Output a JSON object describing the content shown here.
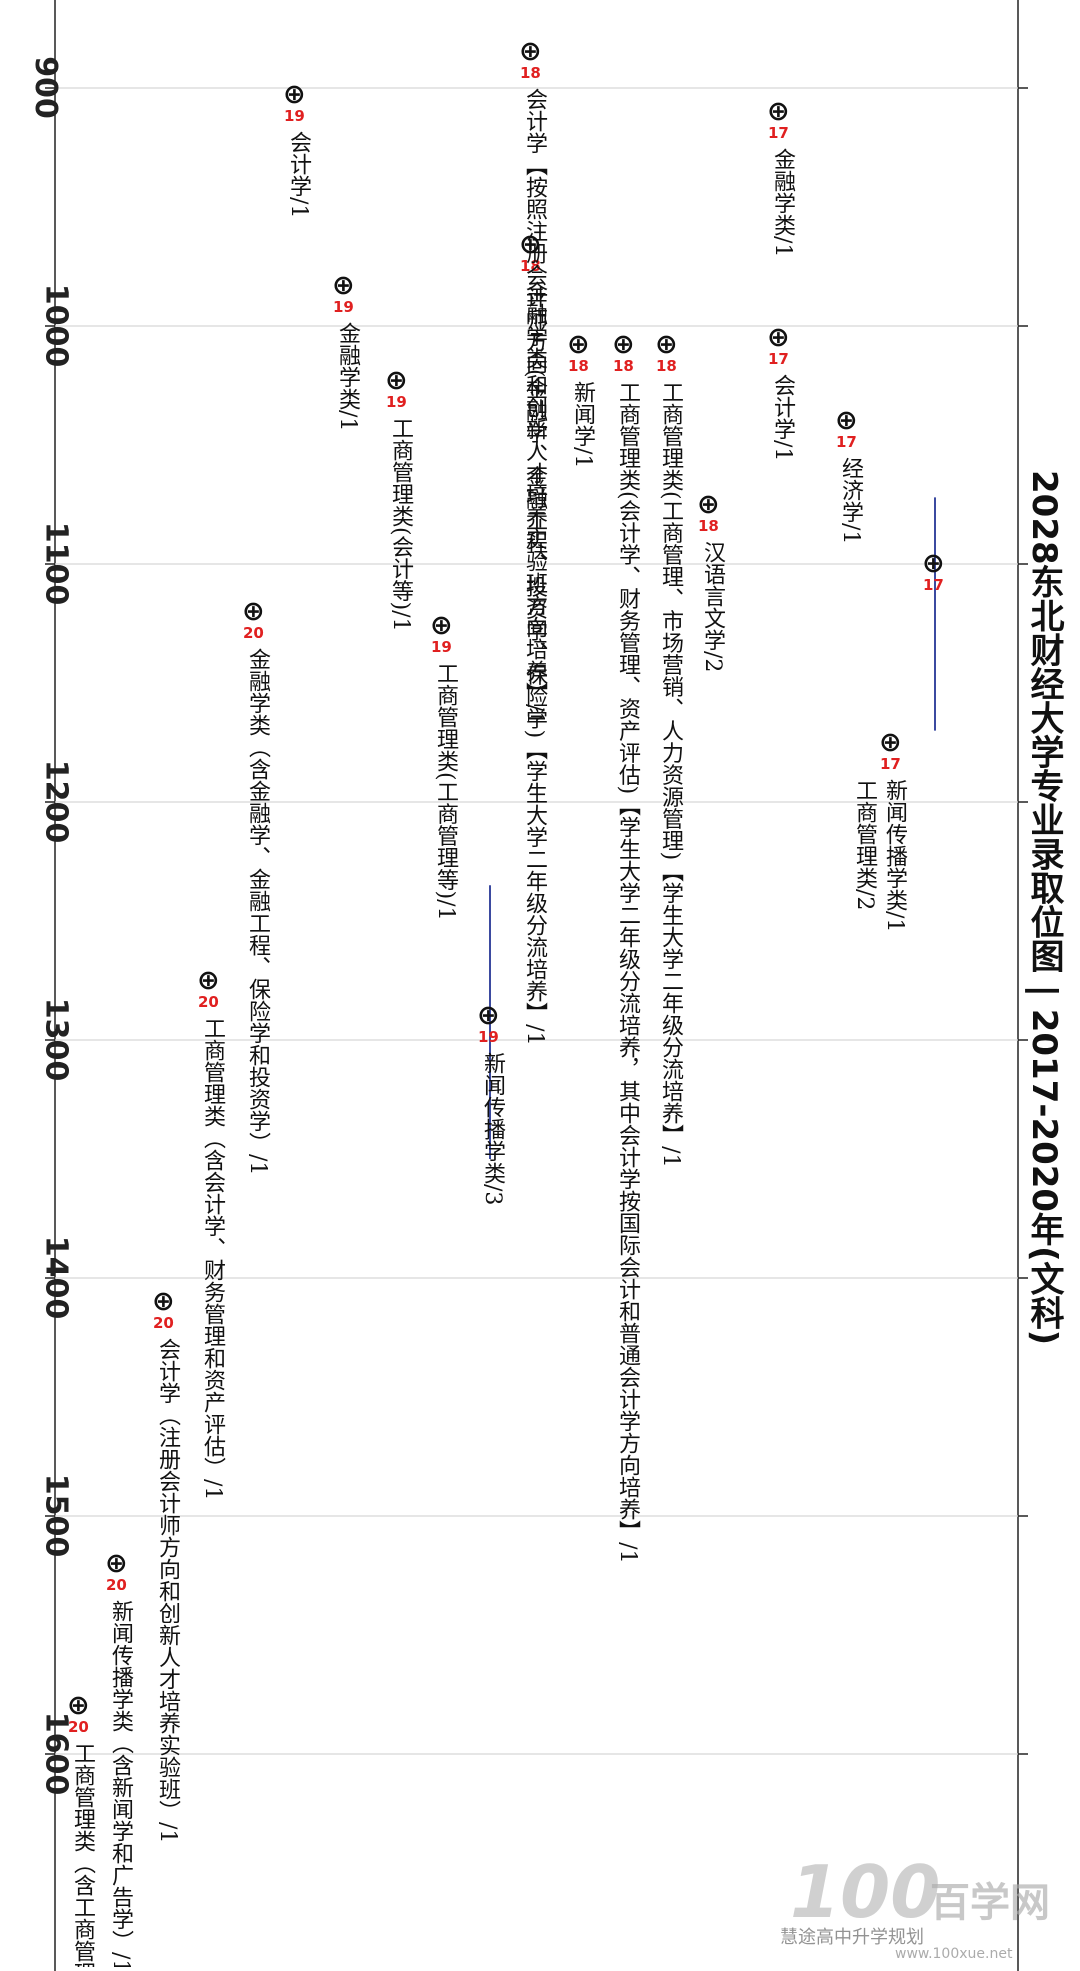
{
  "title": "2028东北财经大学专业录取位图 | 2017-2020年(文科)",
  "watermark": {
    "logo": "100",
    "brand": "百学网",
    "account": "慧途高中升学规划",
    "url": "www.100xue.net"
  },
  "colors": {
    "axis": "#222222",
    "grid": "#d8d8d8",
    "range_line": "#3b4aa0",
    "year_label": "#e02020",
    "text": "#111111"
  },
  "chart_data": {
    "type": "scatter",
    "title": "2028东北财经大学专业录取位图 | 2017-2020年(文科)",
    "y_axis_label": "",
    "y_range": [
      870,
      1700
    ],
    "ticks": [
      900,
      1000,
      1100,
      1200,
      1300,
      1400,
      1500,
      1600
    ],
    "grid": true,
    "points": [
      {
        "rank": 1100,
        "year": "17",
        "label": "",
        "has_range": true,
        "range": [
          1072,
          1170
        ]
      },
      {
        "rank": 1175,
        "year": "17",
        "label": "新闻传播学类/1\n工商管理类/2"
      },
      {
        "rank": 1040,
        "year": "17",
        "label": "经济学/1"
      },
      {
        "rank": 1005,
        "year": "17",
        "label": "会计学/1"
      },
      {
        "rank": 910,
        "year": "17",
        "label": "金融学类/1"
      },
      {
        "rank": 1075,
        "year": "18",
        "label": "汉语言文学/2"
      },
      {
        "rank": 1008,
        "year": "18",
        "label": "工商管理类(工商管理、市场营销、人力资源管理)【学生大学二年级分流培养】/1"
      },
      {
        "rank": 1008,
        "year": "18",
        "label": "工商管理类(会计学、财务管理、资产评估)【学生大学二年级分流培养，其中会计学按国际会计和普通会计学方向培养】/1"
      },
      {
        "rank": 1008,
        "year": "18",
        "label": "新闻学/1"
      },
      {
        "rank": 966,
        "year": "18",
        "label": "金融学类(金融学、金融工程、投资学、保险学)【学生大学二年级分流培养】/1"
      },
      {
        "rank": 885,
        "year": "18",
        "label": "会计学【按照注册会计师方向和创新人才培养实验班方向培养】/1"
      },
      {
        "rank": 1290,
        "year": "19",
        "label": "新闻传播学类/3",
        "has_range": true,
        "range": [
          1235,
          1350
        ]
      },
      {
        "rank": 1126,
        "year": "19",
        "label": "工商管理类(工商管理等)/1"
      },
      {
        "rank": 1023,
        "year": "19",
        "label": "工商管理类(会计等)/1"
      },
      {
        "rank": 983,
        "year": "19",
        "label": "金融学类/1"
      },
      {
        "rank": 903,
        "year": "19",
        "label": "会计学/1"
      },
      {
        "rank": 1120,
        "year": "20",
        "label": "金融学类（含金融学、金融工程、保险学和投资学）/1"
      },
      {
        "rank": 1275,
        "year": "20",
        "label": "工商管理类（含会计学、财务管理和资产评估）/1"
      },
      {
        "rank": 1410,
        "year": "20",
        "label": "会计学（注册会计师方向和创新人才培养实验班）/1"
      },
      {
        "rank": 1520,
        "year": "20",
        "label": "新闻传播学类（含新闻学和广告学）/1"
      },
      {
        "rank": 1580,
        "year": "20",
        "label": "工商管理类（含工商管理"
      }
    ]
  }
}
